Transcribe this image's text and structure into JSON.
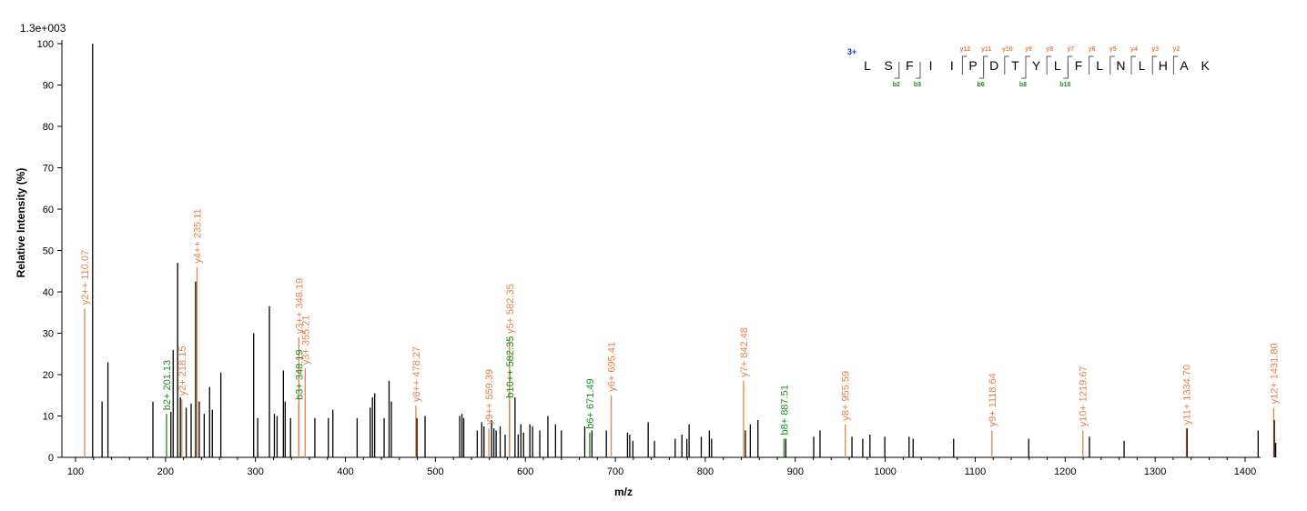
{
  "chart_data": {
    "type": "bar",
    "scale_label": "1.3e+003",
    "xlabel": "m/z",
    "ylabel": "Relative   Intensity (%)",
    "xlim": [
      90,
      1470
    ],
    "ylim": [
      0,
      100
    ],
    "xticks": [
      100,
      200,
      300,
      400,
      500,
      600,
      700,
      800,
      900,
      1000,
      1100,
      1200,
      1300,
      1400
    ],
    "yticks": [
      0,
      10,
      20,
      30,
      40,
      50,
      60,
      70,
      80,
      90,
      100
    ],
    "colors": {
      "unannotated": "#000000",
      "y_ion": "#e8804c",
      "b_ion": "#1f8a1f",
      "charge": "#1f2fbf"
    },
    "peaks": [
      {
        "mz": 110.07,
        "i": 36,
        "t": "y",
        "label": "y2++ 110.07"
      },
      {
        "mz": 119.0,
        "i": 100,
        "t": "u"
      },
      {
        "mz": 129.5,
        "i": 13.5,
        "t": "u"
      },
      {
        "mz": 136.0,
        "i": 23,
        "t": "u"
      },
      {
        "mz": 186.0,
        "i": 13.5,
        "t": "u"
      },
      {
        "mz": 201.13,
        "i": 10.5,
        "t": "b",
        "label": "b2+ 201.13"
      },
      {
        "mz": 206.0,
        "i": 11,
        "t": "u"
      },
      {
        "mz": 208.5,
        "i": 26,
        "t": "u"
      },
      {
        "mz": 213.5,
        "i": 47,
        "t": "u"
      },
      {
        "mz": 216.5,
        "i": 14.5,
        "t": "u"
      },
      {
        "mz": 218.15,
        "i": 14,
        "t": "y",
        "label": "y2+ 218.15"
      },
      {
        "mz": 223.0,
        "i": 12,
        "t": "u"
      },
      {
        "mz": 228.5,
        "i": 13,
        "t": "u"
      },
      {
        "mz": 233.5,
        "i": 42.5,
        "t": "u"
      },
      {
        "mz": 235.11,
        "i": 46,
        "t": "y",
        "label": "y4++ 235.11"
      },
      {
        "mz": 237.5,
        "i": 13.5,
        "t": "u"
      },
      {
        "mz": 243.0,
        "i": 10.5,
        "t": "u"
      },
      {
        "mz": 249.0,
        "i": 17,
        "t": "u"
      },
      {
        "mz": 252.0,
        "i": 11.5,
        "t": "u"
      },
      {
        "mz": 261.5,
        "i": 20.5,
        "t": "u"
      },
      {
        "mz": 298.0,
        "i": 30,
        "t": "u"
      },
      {
        "mz": 302.5,
        "i": 9.5,
        "t": "u"
      },
      {
        "mz": 315.5,
        "i": 36.5,
        "t": "u"
      },
      {
        "mz": 321.0,
        "i": 10.5,
        "t": "u"
      },
      {
        "mz": 324.0,
        "i": 10,
        "t": "u"
      },
      {
        "mz": 331.0,
        "i": 21,
        "t": "u"
      },
      {
        "mz": 333.0,
        "i": 13.5,
        "t": "u"
      },
      {
        "mz": 339.0,
        "i": 9.5,
        "t": "u"
      },
      {
        "mz": 348.19,
        "i": 13,
        "t": "b",
        "label": "b3+ 348.19"
      },
      {
        "mz": 348.19,
        "i": 29,
        "t": "y",
        "label": "y3++ 348.19"
      },
      {
        "mz": 355.21,
        "i": 21.5,
        "t": "y",
        "label": "y3+ 355.21"
      },
      {
        "mz": 366.0,
        "i": 9.5,
        "t": "u"
      },
      {
        "mz": 381.0,
        "i": 9.5,
        "t": "u"
      },
      {
        "mz": 386.0,
        "i": 11.5,
        "t": "u"
      },
      {
        "mz": 413.0,
        "i": 9.5,
        "t": "u"
      },
      {
        "mz": 427.5,
        "i": 12,
        "t": "u"
      },
      {
        "mz": 430.0,
        "i": 14.5,
        "t": "u"
      },
      {
        "mz": 432.5,
        "i": 15.5,
        "t": "u"
      },
      {
        "mz": 443.0,
        "i": 9.5,
        "t": "u"
      },
      {
        "mz": 448.5,
        "i": 18.5,
        "t": "u"
      },
      {
        "mz": 451.0,
        "i": 13.5,
        "t": "u"
      },
      {
        "mz": 478.27,
        "i": 12.5,
        "t": "y",
        "label": "y8++ 478.27"
      },
      {
        "mz": 479.5,
        "i": 9.5,
        "t": "u"
      },
      {
        "mz": 488.5,
        "i": 10,
        "t": "u"
      },
      {
        "mz": 527.0,
        "i": 10,
        "t": "u"
      },
      {
        "mz": 529.5,
        "i": 10.5,
        "t": "u"
      },
      {
        "mz": 531.5,
        "i": 9.5,
        "t": "u"
      },
      {
        "mz": 546.5,
        "i": 6.5,
        "t": "u"
      },
      {
        "mz": 551.5,
        "i": 8.5,
        "t": "u"
      },
      {
        "mz": 554.0,
        "i": 7.5,
        "t": "u"
      },
      {
        "mz": 559.39,
        "i": 7,
        "t": "y",
        "label": "y9++ 559.39"
      },
      {
        "mz": 562.5,
        "i": 9,
        "t": "u"
      },
      {
        "mz": 565.0,
        "i": 7,
        "t": "u"
      },
      {
        "mz": 567.5,
        "i": 6.5,
        "t": "u"
      },
      {
        "mz": 572.0,
        "i": 7.5,
        "t": "u"
      },
      {
        "mz": 577.5,
        "i": 5.5,
        "t": "u"
      },
      {
        "mz": 582.35,
        "i": 13.5,
        "t": "b",
        "label": "b10++ 582.35"
      },
      {
        "mz": 582.35,
        "i": 29,
        "t": "y",
        "label": "y5+ 582.35"
      },
      {
        "mz": 588.5,
        "i": 14.5,
        "t": "u"
      },
      {
        "mz": 592.0,
        "i": 5.5,
        "t": "u"
      },
      {
        "mz": 595.0,
        "i": 8,
        "t": "u"
      },
      {
        "mz": 598.0,
        "i": 6,
        "t": "u"
      },
      {
        "mz": 605.0,
        "i": 8,
        "t": "u"
      },
      {
        "mz": 608.0,
        "i": 7.5,
        "t": "u"
      },
      {
        "mz": 616.0,
        "i": 6.5,
        "t": "u"
      },
      {
        "mz": 625.0,
        "i": 10,
        "t": "u"
      },
      {
        "mz": 633.5,
        "i": 8,
        "t": "u"
      },
      {
        "mz": 640.0,
        "i": 6.5,
        "t": "u"
      },
      {
        "mz": 666.0,
        "i": 7.5,
        "t": "u"
      },
      {
        "mz": 671.49,
        "i": 6,
        "t": "b",
        "label": "b6+ 671.49"
      },
      {
        "mz": 674.0,
        "i": 6.5,
        "t": "u"
      },
      {
        "mz": 690.0,
        "i": 6.5,
        "t": "u"
      },
      {
        "mz": 695.41,
        "i": 15,
        "t": "y",
        "label": "y6+ 695.41"
      },
      {
        "mz": 713.5,
        "i": 6,
        "t": "u"
      },
      {
        "mz": 716.0,
        "i": 5.5,
        "t": "u"
      },
      {
        "mz": 719.5,
        "i": 4,
        "t": "u"
      },
      {
        "mz": 736.5,
        "i": 8.5,
        "t": "u"
      },
      {
        "mz": 743.5,
        "i": 4,
        "t": "u"
      },
      {
        "mz": 766.5,
        "i": 4.5,
        "t": "u"
      },
      {
        "mz": 774.0,
        "i": 5.5,
        "t": "u"
      },
      {
        "mz": 779.5,
        "i": 4.5,
        "t": "u"
      },
      {
        "mz": 782.0,
        "i": 8,
        "t": "u"
      },
      {
        "mz": 795.5,
        "i": 5,
        "t": "u"
      },
      {
        "mz": 804.5,
        "i": 6.5,
        "t": "u"
      },
      {
        "mz": 807.0,
        "i": 4.5,
        "t": "u"
      },
      {
        "mz": 842.48,
        "i": 18.5,
        "t": "y",
        "label": "y7+ 842.48"
      },
      {
        "mz": 844.5,
        "i": 6.5,
        "t": "u"
      },
      {
        "mz": 850.0,
        "i": 8,
        "t": "u"
      },
      {
        "mz": 858.5,
        "i": 9,
        "t": "u"
      },
      {
        "mz": 887.51,
        "i": 4.5,
        "t": "b",
        "label": "b8+ 887.51"
      },
      {
        "mz": 889.5,
        "i": 4.5,
        "t": "u"
      },
      {
        "mz": 920.5,
        "i": 5,
        "t": "u"
      },
      {
        "mz": 927.5,
        "i": 6.5,
        "t": "u"
      },
      {
        "mz": 955.59,
        "i": 8,
        "t": "y",
        "label": "y8+ 955.59"
      },
      {
        "mz": 963.0,
        "i": 5,
        "t": "u"
      },
      {
        "mz": 975.0,
        "i": 4.5,
        "t": "u"
      },
      {
        "mz": 983.0,
        "i": 5.5,
        "t": "u"
      },
      {
        "mz": 999.5,
        "i": 5,
        "t": "u"
      },
      {
        "mz": 1026.5,
        "i": 5,
        "t": "u"
      },
      {
        "mz": 1031.0,
        "i": 4.5,
        "t": "u"
      },
      {
        "mz": 1076.0,
        "i": 4.5,
        "t": "u"
      },
      {
        "mz": 1118.64,
        "i": 6.5,
        "t": "y",
        "label": "y9+ 1118.64"
      },
      {
        "mz": 1159.5,
        "i": 4.5,
        "t": "u"
      },
      {
        "mz": 1219.67,
        "i": 6.5,
        "t": "y",
        "label": "y10+ 1219.67"
      },
      {
        "mz": 1227.0,
        "i": 5,
        "t": "u"
      },
      {
        "mz": 1265.5,
        "i": 4,
        "t": "u"
      },
      {
        "mz": 1334.7,
        "i": 7,
        "t": "y",
        "label": "y11+ 1334.70"
      },
      {
        "mz": 1335.5,
        "i": 7,
        "t": "u"
      },
      {
        "mz": 1414.5,
        "i": 6.5,
        "t": "u"
      },
      {
        "mz": 1431.8,
        "i": 12,
        "t": "y",
        "label": "y12+ 1431.80"
      },
      {
        "mz": 1432.5,
        "i": 9,
        "t": "u"
      },
      {
        "mz": 1434.0,
        "i": 3.5,
        "t": "u"
      }
    ]
  },
  "sequence": {
    "charge": "3+",
    "residues": [
      "L",
      "S",
      "F",
      "I",
      "I",
      "P",
      "D",
      "T",
      "Y",
      "L",
      "F",
      "L",
      "N",
      "L",
      "H",
      "A",
      "K"
    ],
    "b_ions": [
      {
        "after": 2,
        "label": "b2"
      },
      {
        "after": 3,
        "label": "b3"
      },
      {
        "after": 6,
        "label": "b6"
      },
      {
        "after": 8,
        "label": "b8"
      },
      {
        "after": 10,
        "label": "b10"
      }
    ],
    "y_ions": [
      {
        "after": 5,
        "label": "y12"
      },
      {
        "after": 6,
        "label": "y11"
      },
      {
        "after": 7,
        "label": "y10"
      },
      {
        "after": 8,
        "label": "y9"
      },
      {
        "after": 9,
        "label": "y8"
      },
      {
        "after": 10,
        "label": "y7"
      },
      {
        "after": 11,
        "label": "y6"
      },
      {
        "after": 12,
        "label": "y5"
      },
      {
        "after": 13,
        "label": "y4"
      },
      {
        "after": 14,
        "label": "y3"
      },
      {
        "after": 15,
        "label": "y2"
      }
    ]
  }
}
